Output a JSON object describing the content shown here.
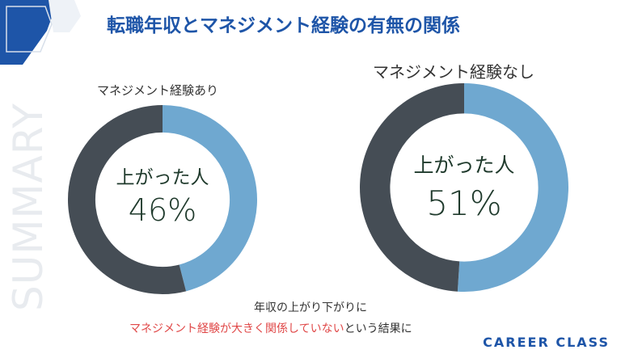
{
  "side_word": "SUMMARY",
  "title": "転職年収とマネジメント経験の有無の関係",
  "chart_data": [
    {
      "type": "pie",
      "label": "マネジメント経験あり",
      "slices": [
        {
          "name": "上がった人",
          "value": 46,
          "color": "#6fa8d0"
        },
        {
          "value": 54,
          "color": "#454d55"
        }
      ],
      "center_caption": "上がった人",
      "center_value": "46%"
    },
    {
      "type": "pie",
      "label": "マネジメント経験なし",
      "slices": [
        {
          "name": "上がった人",
          "value": 51,
          "color": "#6fa8d0"
        },
        {
          "value": 49,
          "color": "#454d55"
        }
      ],
      "center_caption": "上がった人",
      "center_value": "51%"
    }
  ],
  "footer": {
    "line1": "年収の上がり下がりに",
    "line2_highlight": "マネジメント経験が大きく関係していない",
    "line2_rest": "という結果に"
  },
  "brand": "CAREER CLASS",
  "colors": {
    "accent": "#1e55a8",
    "highlight": "#e04848",
    "dark_ring": "#454d55",
    "light_ring": "#6fa8d0"
  }
}
